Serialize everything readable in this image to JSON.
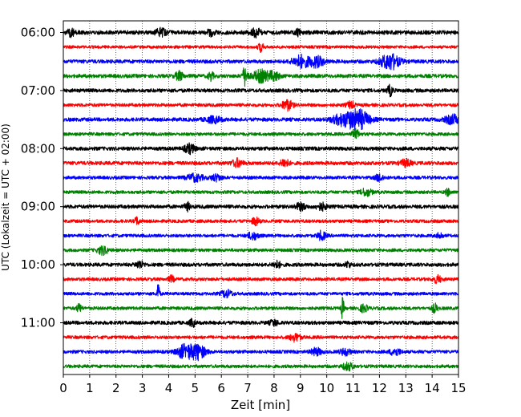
{
  "chart_data": {
    "type": "line",
    "title": "",
    "xlabel": "Zeit  [min]",
    "ylabel": "UTC (Lokalzeit = UTC + 02:00)",
    "xlim": [
      0,
      15
    ],
    "x_ticks": [
      0,
      1,
      2,
      3,
      4,
      5,
      6,
      7,
      8,
      9,
      10,
      11,
      12,
      13,
      14,
      15
    ],
    "y_ticks": [
      {
        "label": "06:00",
        "trace_index": 0
      },
      {
        "label": "07:00",
        "trace_index": 4
      },
      {
        "label": "08:00",
        "trace_index": 8
      },
      {
        "label": "09:00",
        "trace_index": 12
      },
      {
        "label": "10:00",
        "trace_index": 16
      },
      {
        "label": "11:00",
        "trace_index": 20
      }
    ],
    "grid": {
      "vertical": true,
      "style": "dotted"
    },
    "trace_interval_min": 15,
    "trace_colors": [
      "#000000",
      "#ff0000",
      "#0000ff",
      "#008000"
    ],
    "traces": [
      {
        "start": "06:00",
        "color": "#000000",
        "amplitude": 0.28,
        "events": [
          {
            "x": 0.3,
            "amp": 0.5,
            "width": 0.15
          },
          {
            "x": 3.7,
            "amp": 0.45,
            "width": 0.2
          },
          {
            "x": 5.6,
            "amp": 0.4,
            "width": 0.15
          },
          {
            "x": 7.3,
            "amp": 0.5,
            "width": 0.2
          },
          {
            "x": 8.9,
            "amp": 0.35,
            "width": 0.1
          }
        ]
      },
      {
        "start": "06:15",
        "color": "#ff0000",
        "amplitude": 0.2,
        "events": [
          {
            "x": 7.5,
            "amp": 0.6,
            "width": 0.1
          }
        ]
      },
      {
        "start": "06:30",
        "color": "#0000ff",
        "amplitude": 0.25,
        "events": [
          {
            "x": 9.0,
            "amp": 0.8,
            "width": 0.3
          },
          {
            "x": 9.6,
            "amp": 0.7,
            "width": 0.3
          },
          {
            "x": 12.4,
            "amp": 1.1,
            "width": 0.35
          }
        ]
      },
      {
        "start": "06:45",
        "color": "#008000",
        "amplitude": 0.25,
        "events": [
          {
            "x": 4.4,
            "amp": 0.6,
            "width": 0.15
          },
          {
            "x": 5.6,
            "amp": 0.6,
            "width": 0.1
          },
          {
            "x": 6.9,
            "amp": 1.3,
            "width": 0.1
          },
          {
            "x": 7.5,
            "amp": 0.8,
            "width": 0.3
          },
          {
            "x": 8.0,
            "amp": 0.6,
            "width": 0.2
          }
        ]
      },
      {
        "start": "07:00",
        "color": "#000000",
        "amplitude": 0.25,
        "events": [
          {
            "x": 12.4,
            "amp": 0.7,
            "width": 0.1
          }
        ]
      },
      {
        "start": "07:15",
        "color": "#ff0000",
        "amplitude": 0.22,
        "events": [
          {
            "x": 8.5,
            "amp": 0.7,
            "width": 0.2
          },
          {
            "x": 10.9,
            "amp": 0.45,
            "width": 0.15
          }
        ]
      },
      {
        "start": "07:30",
        "color": "#0000ff",
        "amplitude": 0.25,
        "events": [
          {
            "x": 5.7,
            "amp": 0.4,
            "width": 0.3
          },
          {
            "x": 10.6,
            "amp": 0.7,
            "width": 0.4
          },
          {
            "x": 11.2,
            "amp": 1.3,
            "width": 0.4
          },
          {
            "x": 14.8,
            "amp": 0.6,
            "width": 0.3
          }
        ]
      },
      {
        "start": "07:45",
        "color": "#008000",
        "amplitude": 0.22,
        "events": [
          {
            "x": 11.1,
            "amp": 0.55,
            "width": 0.15
          }
        ]
      },
      {
        "start": "08:00",
        "color": "#000000",
        "amplitude": 0.25,
        "events": [
          {
            "x": 4.8,
            "amp": 0.6,
            "width": 0.2
          }
        ]
      },
      {
        "start": "08:15",
        "color": "#ff0000",
        "amplitude": 0.25,
        "events": [
          {
            "x": 6.6,
            "amp": 0.5,
            "width": 0.2
          },
          {
            "x": 8.4,
            "amp": 0.6,
            "width": 0.15
          },
          {
            "x": 13.0,
            "amp": 0.45,
            "width": 0.2
          }
        ]
      },
      {
        "start": "08:30",
        "color": "#0000ff",
        "amplitude": 0.22,
        "events": [
          {
            "x": 5.0,
            "amp": 0.5,
            "width": 0.3
          },
          {
            "x": 5.8,
            "amp": 0.45,
            "width": 0.2
          },
          {
            "x": 12.0,
            "amp": 0.5,
            "width": 0.15
          }
        ]
      },
      {
        "start": "08:45",
        "color": "#008000",
        "amplitude": 0.22,
        "events": [
          {
            "x": 11.5,
            "amp": 0.5,
            "width": 0.2
          },
          {
            "x": 14.6,
            "amp": 0.45,
            "width": 0.1
          }
        ]
      },
      {
        "start": "09:00",
        "color": "#000000",
        "amplitude": 0.25,
        "events": [
          {
            "x": 4.7,
            "amp": 0.55,
            "width": 0.1
          },
          {
            "x": 9.0,
            "amp": 0.45,
            "width": 0.2
          },
          {
            "x": 9.8,
            "amp": 0.45,
            "width": 0.2
          }
        ]
      },
      {
        "start": "09:15",
        "color": "#ff0000",
        "amplitude": 0.22,
        "events": [
          {
            "x": 2.8,
            "amp": 0.5,
            "width": 0.1
          },
          {
            "x": 7.3,
            "amp": 0.45,
            "width": 0.15
          }
        ]
      },
      {
        "start": "09:30",
        "color": "#0000ff",
        "amplitude": 0.22,
        "events": [
          {
            "x": 7.2,
            "amp": 0.5,
            "width": 0.2
          },
          {
            "x": 9.8,
            "amp": 0.6,
            "width": 0.15
          },
          {
            "x": 14.3,
            "amp": 0.45,
            "width": 0.1
          }
        ]
      },
      {
        "start": "09:45",
        "color": "#008000",
        "amplitude": 0.22,
        "events": [
          {
            "x": 1.5,
            "amp": 0.55,
            "width": 0.2
          }
        ]
      },
      {
        "start": "10:00",
        "color": "#000000",
        "amplitude": 0.25,
        "events": [
          {
            "x": 2.9,
            "amp": 0.5,
            "width": 0.15
          },
          {
            "x": 8.1,
            "amp": 0.45,
            "width": 0.15
          },
          {
            "x": 10.8,
            "amp": 0.4,
            "width": 0.1
          }
        ]
      },
      {
        "start": "10:15",
        "color": "#ff0000",
        "amplitude": 0.22,
        "events": [
          {
            "x": 4.1,
            "amp": 0.45,
            "width": 0.1
          },
          {
            "x": 14.2,
            "amp": 0.5,
            "width": 0.15
          }
        ]
      },
      {
        "start": "10:30",
        "color": "#0000ff",
        "amplitude": 0.22,
        "events": [
          {
            "x": 3.6,
            "amp": 1.8,
            "width": 0.05
          },
          {
            "x": 6.2,
            "amp": 0.5,
            "width": 0.2
          }
        ]
      },
      {
        "start": "10:45",
        "color": "#008000",
        "amplitude": 0.22,
        "events": [
          {
            "x": 0.6,
            "amp": 0.5,
            "width": 0.1
          },
          {
            "x": 10.6,
            "amp": 1.5,
            "width": 0.05
          },
          {
            "x": 11.4,
            "amp": 0.5,
            "width": 0.15
          },
          {
            "x": 14.1,
            "amp": 0.6,
            "width": 0.1
          }
        ]
      },
      {
        "start": "11:00",
        "color": "#000000",
        "amplitude": 0.25,
        "events": [
          {
            "x": 4.9,
            "amp": 0.55,
            "width": 0.1
          },
          {
            "x": 8.0,
            "amp": 0.4,
            "width": 0.15
          }
        ]
      },
      {
        "start": "11:15",
        "color": "#ff0000",
        "amplitude": 0.22,
        "events": [
          {
            "x": 8.8,
            "amp": 0.5,
            "width": 0.2
          }
        ]
      },
      {
        "start": "11:30",
        "color": "#0000ff",
        "amplitude": 0.22,
        "events": [
          {
            "x": 4.6,
            "amp": 0.9,
            "width": 0.3
          },
          {
            "x": 5.1,
            "amp": 1.0,
            "width": 0.3
          },
          {
            "x": 9.6,
            "amp": 0.5,
            "width": 0.2
          },
          {
            "x": 10.7,
            "amp": 0.45,
            "width": 0.2
          },
          {
            "x": 12.6,
            "amp": 0.5,
            "width": 0.2
          }
        ]
      },
      {
        "start": "11:45",
        "color": "#008000",
        "amplitude": 0.22,
        "events": [
          {
            "x": 10.8,
            "amp": 0.5,
            "width": 0.2
          }
        ]
      }
    ]
  }
}
